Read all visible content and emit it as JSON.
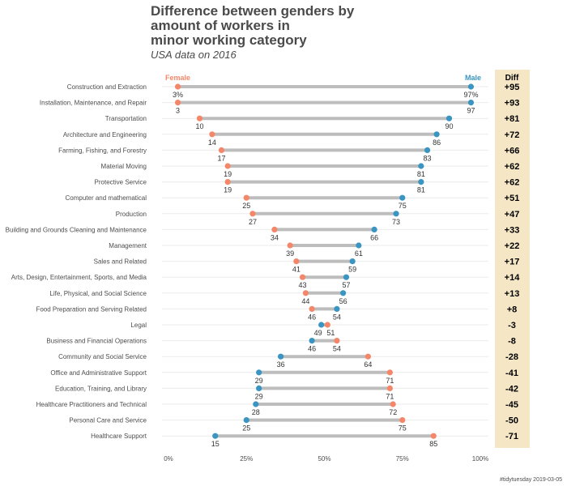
{
  "chart_data": {
    "type": "dumbbell",
    "title_lines": [
      "Difference between genders by",
      "amount of workers in",
      "minor working category"
    ],
    "subtitle": "USA data on 2016",
    "caption": "#tidytuesday 2019-03-05",
    "xlabel": "",
    "ylabel": "",
    "xlim": [
      0,
      100
    ],
    "x_ticks": [
      "0%",
      "25%",
      "50%",
      "75%",
      "100%"
    ],
    "legend": {
      "female": "Female",
      "male": "Male"
    },
    "diff_header": "Diff",
    "colors": {
      "female": "#f4876a",
      "male": "#3a95c2",
      "segment": "#bdbdbd",
      "diff_panel": "#f5e7c6",
      "grid": "#ebebeb"
    },
    "categories": [
      {
        "name": "Construction and Extraction",
        "female": 3,
        "male": 97,
        "female_label": "3%",
        "male_label": "97%",
        "diff": "+95"
      },
      {
        "name": "Installation, Maintenance, and Repair",
        "female": 3,
        "male": 97,
        "female_label": "3",
        "male_label": "97",
        "diff": "+93"
      },
      {
        "name": "Transportation",
        "female": 10,
        "male": 90,
        "female_label": "10",
        "male_label": "90",
        "diff": "+81"
      },
      {
        "name": "Architecture and Engineering",
        "female": 14,
        "male": 86,
        "female_label": "14",
        "male_label": "86",
        "diff": "+72"
      },
      {
        "name": "Farming, Fishing, and Forestry",
        "female": 17,
        "male": 83,
        "female_label": "17",
        "male_label": "83",
        "diff": "+66"
      },
      {
        "name": "Material Moving",
        "female": 19,
        "male": 81,
        "female_label": "19",
        "male_label": "81",
        "diff": "+62"
      },
      {
        "name": "Protective Service",
        "female": 19,
        "male": 81,
        "female_label": "19",
        "male_label": "81",
        "diff": "+62"
      },
      {
        "name": "Computer and mathematical",
        "female": 25,
        "male": 75,
        "female_label": "25",
        "male_label": "75",
        "diff": "+51"
      },
      {
        "name": "Production",
        "female": 27,
        "male": 73,
        "female_label": "27",
        "male_label": "73",
        "diff": "+47"
      },
      {
        "name": "Building and Grounds Cleaning and Maintenance",
        "female": 34,
        "male": 66,
        "female_label": "34",
        "male_label": "66",
        "diff": "+33"
      },
      {
        "name": "Management",
        "female": 39,
        "male": 61,
        "female_label": "39",
        "male_label": "61",
        "diff": "+22"
      },
      {
        "name": "Sales and Related",
        "female": 41,
        "male": 59,
        "female_label": "41",
        "male_label": "59",
        "diff": "+17"
      },
      {
        "name": "Arts, Design, Entertainment, Sports, and Media",
        "female": 43,
        "male": 57,
        "female_label": "43",
        "male_label": "57",
        "diff": "+14"
      },
      {
        "name": "Life, Physical, and Social Science",
        "female": 44,
        "male": 56,
        "female_label": "44",
        "male_label": "56",
        "diff": "+13"
      },
      {
        "name": "Food Preparation and Serving Related",
        "female": 46,
        "male": 54,
        "female_label": "46",
        "male_label": "54",
        "diff": "+8"
      },
      {
        "name": "Legal",
        "female": 51,
        "male": 49,
        "female_label": "51",
        "male_label": "49",
        "diff": "-3"
      },
      {
        "name": "Business and Financial Operations",
        "female": 54,
        "male": 46,
        "female_label": "54",
        "male_label": "46",
        "diff": "-8"
      },
      {
        "name": "Community and Social Service",
        "female": 64,
        "male": 36,
        "female_label": "64",
        "male_label": "36",
        "diff": "-28"
      },
      {
        "name": "Office and Administrative Support",
        "female": 71,
        "male": 29,
        "female_label": "71",
        "male_label": "29",
        "diff": "-41"
      },
      {
        "name": "Education, Training, and Library",
        "female": 71,
        "male": 29,
        "female_label": "71",
        "male_label": "29",
        "diff": "-42"
      },
      {
        "name": "Healthcare Practitioners and Technical",
        "female": 72,
        "male": 28,
        "female_label": "72",
        "male_label": "28",
        "diff": "-45"
      },
      {
        "name": "Personal Care and Service",
        "female": 75,
        "male": 25,
        "female_label": "75",
        "male_label": "25",
        "diff": "-50"
      },
      {
        "name": "Healthcare Support",
        "female": 85,
        "male": 15,
        "female_label": "85",
        "male_label": "15",
        "diff": "-71"
      }
    ]
  }
}
